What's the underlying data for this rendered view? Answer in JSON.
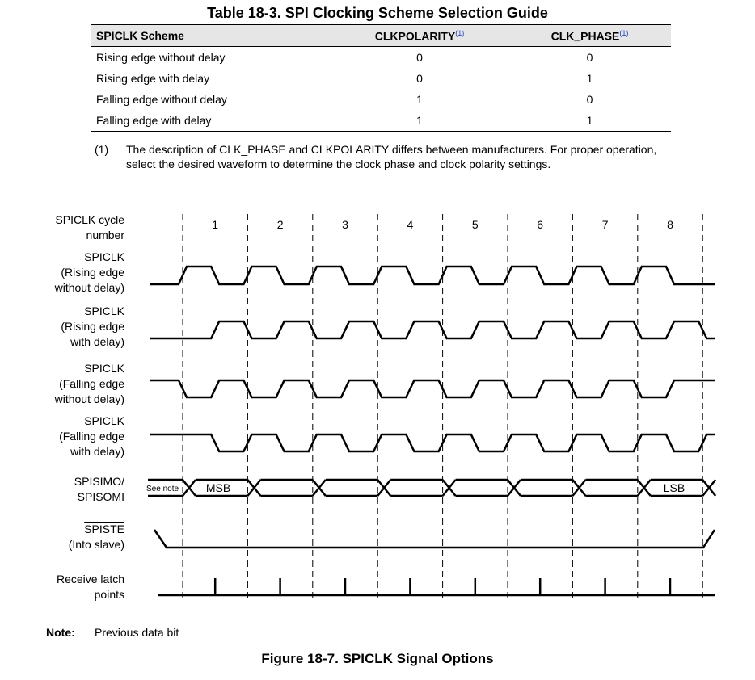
{
  "table": {
    "title": "Table 18-3. SPI Clocking Scheme Selection Guide",
    "headers": [
      "SPICLK Scheme",
      "CLKPOLARITY",
      "CLK_PHASE"
    ],
    "header_note": "(1)",
    "rows": [
      [
        "Rising edge without delay",
        "0",
        "0"
      ],
      [
        "Rising edge with delay",
        "0",
        "1"
      ],
      [
        "Falling edge without delay",
        "1",
        "0"
      ],
      [
        "Falling edge with delay",
        "1",
        "1"
      ]
    ]
  },
  "footnote": {
    "number": "(1)",
    "text": "The description of CLK_PHASE and CLKPOLARITY differs between manufacturers. For proper operation, select the desired waveform to determine the clock phase and clock polarity settings."
  },
  "diagram": {
    "cycle_label_1": "SPICLK cycle",
    "cycle_label_2": "number",
    "cycles": [
      "1",
      "2",
      "3",
      "4",
      "5",
      "6",
      "7",
      "8"
    ],
    "signals": [
      {
        "line1": "SPICLK",
        "line2": "(Rising edge",
        "line3": "without delay)"
      },
      {
        "line1": "SPICLK",
        "line2": "(Rising edge",
        "line3": "with delay)"
      },
      {
        "line1": "SPICLK",
        "line2": "(Falling edge",
        "line3": "without delay)"
      },
      {
        "line1": "SPICLK",
        "line2": "(Falling edge",
        "line3": "with delay)"
      }
    ],
    "simo_label_1": "SPISIMO/",
    "simo_label_2": "SPISOMI",
    "see_note": "See note",
    "msb": "MSB",
    "lsb": "LSB",
    "ste_label_1": "SPISTE",
    "ste_label_2": "(Into slave)",
    "latch_label_1": "Receive latch",
    "latch_label_2": "points"
  },
  "note": {
    "label": "Note:",
    "text": "Previous data bit"
  },
  "figure_title": "Figure 18-7. SPICLK Signal Options"
}
